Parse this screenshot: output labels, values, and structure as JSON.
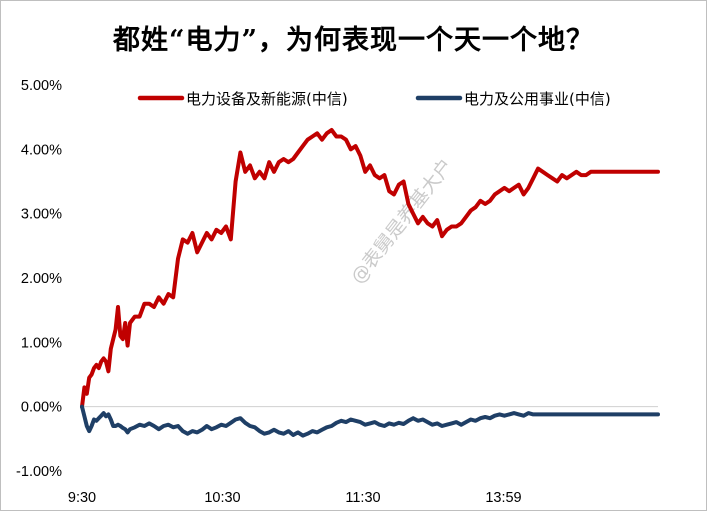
{
  "chart_data": {
    "type": "line",
    "title": "都姓“电力”，为何表现一个天一个地？",
    "xlabel": "",
    "ylabel": "",
    "ylim": [
      -1.0,
      5.0
    ],
    "y_ticks": [
      "-1.00%",
      "0.00%",
      "1.00%",
      "2.00%",
      "3.00%",
      "4.00%",
      "5.00%"
    ],
    "x_ticks": [
      "9:30",
      "10:30",
      "11:30",
      "13:59"
    ],
    "x_range_minutes": [
      0,
      240
    ],
    "grid": false,
    "legend_position": "top",
    "watermark": "@表舅是养基大户",
    "series": [
      {
        "name": "电力设备及新能源(中信)",
        "color": "#c00000",
        "x": [
          0,
          1,
          2,
          3,
          4,
          5,
          6,
          7,
          8,
          9,
          10,
          11,
          12,
          13,
          14,
          15,
          16,
          17,
          18,
          19,
          20,
          22,
          24,
          26,
          28,
          30,
          32,
          34,
          36,
          38,
          40,
          42,
          44,
          46,
          48,
          50,
          52,
          54,
          56,
          58,
          60,
          62,
          64,
          66,
          68,
          70,
          72,
          74,
          76,
          78,
          80,
          82,
          84,
          86,
          88,
          90,
          92,
          94,
          96,
          98,
          100,
          102,
          104,
          106,
          108,
          110,
          112,
          114,
          116,
          118,
          120,
          122,
          124,
          126,
          128,
          130,
          132,
          134,
          136,
          138,
          140,
          142,
          144,
          146,
          148,
          150,
          152,
          154,
          156,
          158,
          160,
          162,
          164,
          166,
          168,
          170,
          172,
          174,
          176,
          178,
          180,
          182,
          184,
          186,
          188,
          190,
          192,
          194,
          196,
          198,
          200,
          202,
          204,
          206,
          208,
          210,
          212,
          214,
          216,
          218,
          220,
          222,
          224,
          226,
          228,
          230,
          232,
          234,
          236,
          238,
          240
        ],
        "values": [
          0.0,
          0.3,
          0.2,
          0.45,
          0.5,
          0.6,
          0.65,
          0.6,
          0.7,
          0.75,
          0.7,
          0.55,
          0.9,
          1.05,
          1.2,
          1.55,
          1.1,
          1.05,
          1.3,
          0.95,
          1.3,
          1.4,
          1.4,
          1.6,
          1.6,
          1.55,
          1.7,
          1.6,
          1.75,
          1.7,
          2.3,
          2.6,
          2.55,
          2.7,
          2.4,
          2.55,
          2.7,
          2.6,
          2.75,
          2.7,
          2.8,
          2.6,
          3.5,
          3.95,
          3.65,
          3.75,
          3.55,
          3.65,
          3.55,
          3.8,
          3.65,
          3.8,
          3.85,
          3.8,
          3.85,
          3.95,
          4.05,
          4.15,
          4.2,
          4.25,
          4.15,
          4.25,
          4.3,
          4.2,
          4.2,
          4.15,
          4.0,
          4.05,
          3.9,
          3.65,
          3.75,
          3.6,
          3.55,
          3.6,
          3.35,
          3.3,
          3.45,
          3.5,
          3.15,
          3.0,
          2.85,
          2.95,
          2.85,
          2.8,
          2.9,
          2.65,
          2.75,
          2.8,
          2.8,
          2.85,
          2.95,
          3.05,
          3.1,
          3.2,
          3.15,
          3.2,
          3.3,
          3.35,
          3.4,
          3.35,
          3.4,
          3.45,
          3.3,
          3.4,
          3.55,
          3.7,
          3.65,
          3.6,
          3.55,
          3.5,
          3.6,
          3.55,
          3.6,
          3.65,
          3.6,
          3.6,
          3.65,
          3.65,
          3.65,
          3.65,
          3.65,
          3.65,
          3.65,
          3.65,
          3.65,
          3.65,
          3.65,
          3.65,
          3.65,
          3.65,
          3.65
        ]
      },
      {
        "name": "电力及公用事业(中信)",
        "color": "#1f3f66",
        "x": [
          0,
          1,
          2,
          3,
          4,
          5,
          6,
          7,
          8,
          9,
          10,
          11,
          12,
          13,
          14,
          15,
          16,
          17,
          18,
          19,
          20,
          22,
          24,
          26,
          28,
          30,
          32,
          34,
          36,
          38,
          40,
          42,
          44,
          46,
          48,
          50,
          52,
          54,
          56,
          58,
          60,
          62,
          64,
          66,
          68,
          70,
          72,
          74,
          76,
          78,
          80,
          82,
          84,
          86,
          88,
          90,
          92,
          94,
          96,
          98,
          100,
          102,
          104,
          106,
          108,
          110,
          112,
          114,
          116,
          118,
          120,
          122,
          124,
          126,
          128,
          130,
          132,
          134,
          136,
          138,
          140,
          142,
          144,
          146,
          148,
          150,
          152,
          154,
          156,
          158,
          160,
          162,
          164,
          166,
          168,
          170,
          172,
          174,
          176,
          178,
          180,
          182,
          184,
          186,
          188,
          190,
          192,
          194,
          196,
          198,
          200,
          202,
          204,
          206,
          208,
          210,
          212,
          214,
          216,
          218,
          220,
          222,
          224,
          226,
          228,
          230,
          232,
          234,
          236,
          238,
          240
        ],
        "values": [
          0.0,
          -0.15,
          -0.3,
          -0.38,
          -0.3,
          -0.2,
          -0.22,
          -0.18,
          -0.14,
          -0.1,
          -0.15,
          -0.12,
          -0.2,
          -0.3,
          -0.3,
          -0.28,
          -0.3,
          -0.33,
          -0.35,
          -0.4,
          -0.35,
          -0.32,
          -0.28,
          -0.3,
          -0.26,
          -0.3,
          -0.35,
          -0.3,
          -0.28,
          -0.32,
          -0.3,
          -0.38,
          -0.42,
          -0.38,
          -0.4,
          -0.36,
          -0.3,
          -0.35,
          -0.32,
          -0.28,
          -0.3,
          -0.25,
          -0.2,
          -0.18,
          -0.25,
          -0.3,
          -0.32,
          -0.38,
          -0.42,
          -0.4,
          -0.36,
          -0.4,
          -0.42,
          -0.38,
          -0.44,
          -0.4,
          -0.45,
          -0.42,
          -0.38,
          -0.4,
          -0.36,
          -0.32,
          -0.3,
          -0.25,
          -0.22,
          -0.24,
          -0.2,
          -0.22,
          -0.24,
          -0.28,
          -0.26,
          -0.24,
          -0.28,
          -0.3,
          -0.26,
          -0.28,
          -0.25,
          -0.27,
          -0.22,
          -0.18,
          -0.22,
          -0.2,
          -0.24,
          -0.28,
          -0.26,
          -0.3,
          -0.28,
          -0.26,
          -0.24,
          -0.28,
          -0.24,
          -0.2,
          -0.22,
          -0.18,
          -0.16,
          -0.18,
          -0.14,
          -0.12,
          -0.14,
          -0.12,
          -0.1,
          -0.12,
          -0.14,
          -0.1,
          -0.12,
          -0.12,
          -0.12,
          -0.12,
          -0.12,
          -0.12,
          -0.12,
          -0.12,
          -0.12,
          -0.12,
          -0.12,
          -0.12,
          -0.12,
          -0.12,
          -0.12,
          -0.12,
          -0.12,
          -0.12,
          -0.12,
          -0.12,
          -0.12,
          -0.12,
          -0.12,
          -0.12,
          -0.12,
          -0.12,
          -0.12
        ]
      }
    ]
  }
}
